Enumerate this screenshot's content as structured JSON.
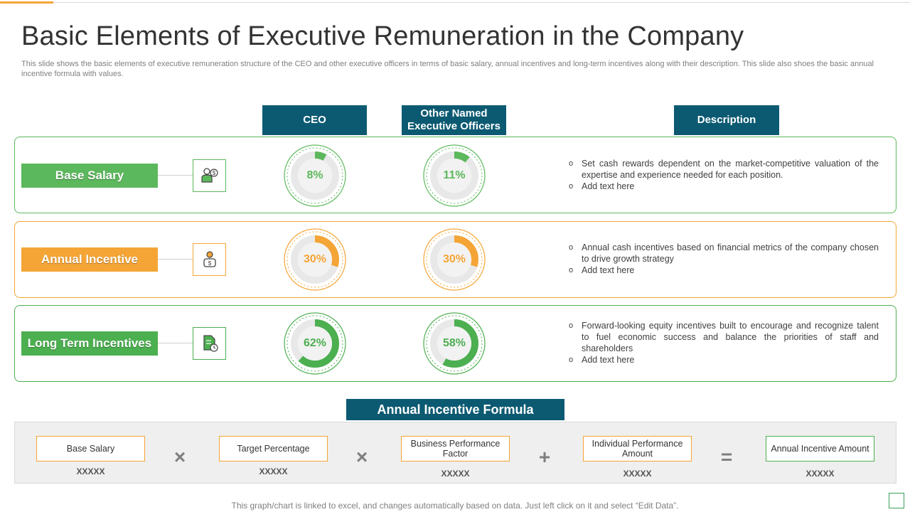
{
  "title": "Basic Elements of Executive Remuneration in the Company",
  "subtitle": "This slide shows the basic elements of executive remuneration structure of the CEO and other executive officers in terms of basic salary, annual incentives and long-term incentives along with their description. This slide also shoes the basic annual incentive formula with values.",
  "headers": {
    "ceo": "CEO",
    "officers": "Other Named Executive Officers",
    "description": "Description"
  },
  "rows": [
    {
      "label": "Base Salary",
      "icon": "salary-person-icon",
      "color": "#5cb85c",
      "ceo_percent": 8,
      "ceo_label": "8%",
      "officers_percent": 11,
      "officers_label": "11%",
      "description": [
        "Set cash rewards dependent on the market-competitive valuation of the expertise and experience needed for each position.",
        "Add text here"
      ]
    },
    {
      "label": "Annual Incentive",
      "icon": "incentive-person-icon",
      "color": "#f4a536",
      "ceo_percent": 30,
      "ceo_label": "30%",
      "officers_percent": 30,
      "officers_label": "30%",
      "description": [
        "Annual cash incentives based on financial metrics of the company chosen to drive growth strategy",
        "Add text here"
      ]
    },
    {
      "label": "Long Term Incentives",
      "icon": "document-clock-icon",
      "color": "#4caf50",
      "ceo_percent": 62,
      "ceo_label": "62%",
      "officers_percent": 58,
      "officers_label": "58%",
      "description": [
        "Forward-looking equity incentives built to encourage and recognize talent to fuel economic success and balance the priorities of staff and shareholders",
        "Add text here"
      ]
    }
  ],
  "formula": {
    "title": "Annual Incentive Formula",
    "items": [
      {
        "label": "Base Salary",
        "value": "XXXXX"
      },
      {
        "label": "Target Percentage",
        "value": "XXXXX"
      },
      {
        "label": "Business Performance Factor",
        "value": "XXXXX"
      },
      {
        "label": "Individual Performance Amount",
        "value": "XXXXX"
      },
      {
        "label": "Annual Incentive Amount",
        "value": "XXXXX"
      }
    ],
    "operators": [
      "×",
      "×",
      "+",
      "="
    ]
  },
  "footer": "This graph/chart is linked to excel,  and changes automatically based on data. Just left click on it and select “Edit Data”."
}
